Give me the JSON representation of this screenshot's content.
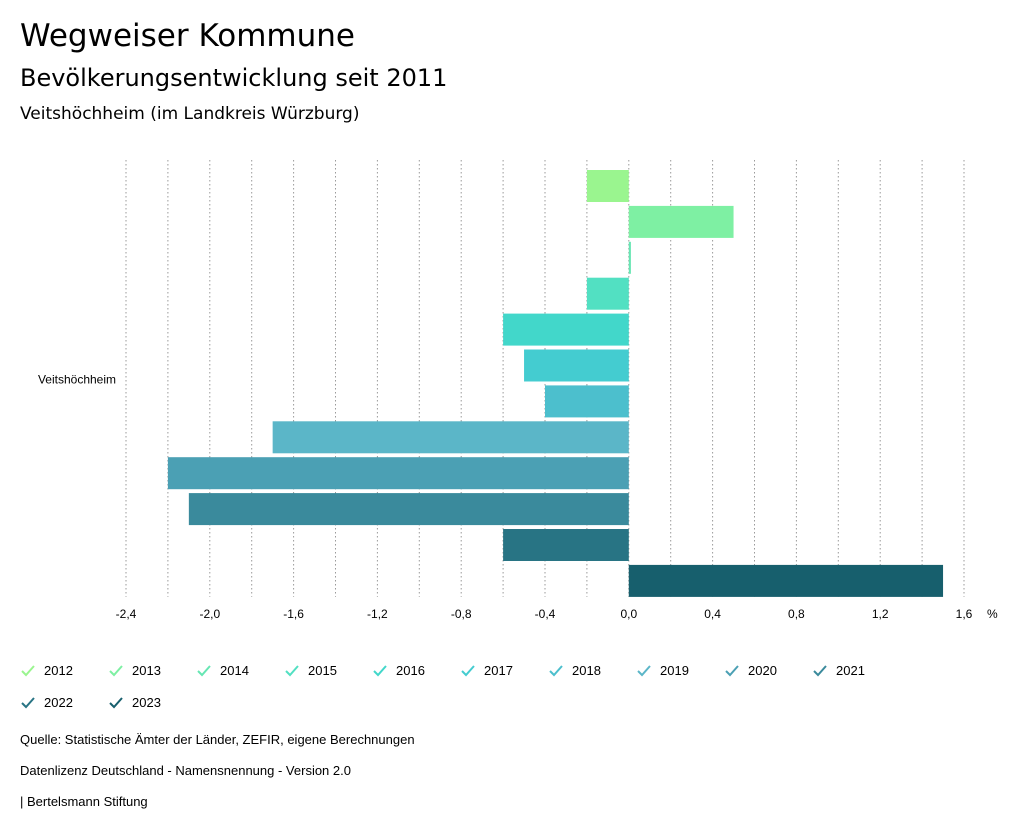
{
  "header": {
    "title": "Wegweiser Kommune",
    "subtitle": "Bevölkerungsentwicklung seit 2011",
    "place": "Veitshöchheim (im Landkreis Würzburg)"
  },
  "chart_data": {
    "type": "bar",
    "orientation": "horizontal",
    "category": "Veitshöchheim",
    "unit": "%",
    "xlim": [
      -2.4,
      1.6
    ],
    "ticks": [
      "-2,4",
      "-2,0",
      "-1,6",
      "-1,2",
      "-0,8",
      "-0,4",
      "0,0",
      "0,4",
      "0,8",
      "1,2",
      "1,6"
    ],
    "series": [
      {
        "name": "2012",
        "value": -0.2,
        "color": "#9af58f"
      },
      {
        "name": "2013",
        "value": 0.5,
        "color": "#7ef0a3"
      },
      {
        "name": "2014",
        "value": 0.01,
        "color": "#66e6b3"
      },
      {
        "name": "2015",
        "value": -0.2,
        "color": "#52e0c2"
      },
      {
        "name": "2016",
        "value": -0.6,
        "color": "#42d7ca"
      },
      {
        "name": "2017",
        "value": -0.5,
        "color": "#44ccd0"
      },
      {
        "name": "2018",
        "value": -0.4,
        "color": "#4cbfcd"
      },
      {
        "name": "2019",
        "value": -1.7,
        "color": "#5bb6c8"
      },
      {
        "name": "2020",
        "value": -2.2,
        "color": "#4ba0b4"
      },
      {
        "name": "2021",
        "value": -2.1,
        "color": "#3a8a9c"
      },
      {
        "name": "2022",
        "value": -0.6,
        "color": "#287484"
      },
      {
        "name": "2023",
        "value": 1.5,
        "color": "#175f6d"
      }
    ]
  },
  "footer": {
    "source": "Quelle: Statistische Ämter der Länder, ZEFIR, eigene Berechnungen",
    "license": "Datenlizenz Deutschland - Namensnennung - Version 2.0",
    "credit": "| Bertelsmann Stiftung"
  }
}
